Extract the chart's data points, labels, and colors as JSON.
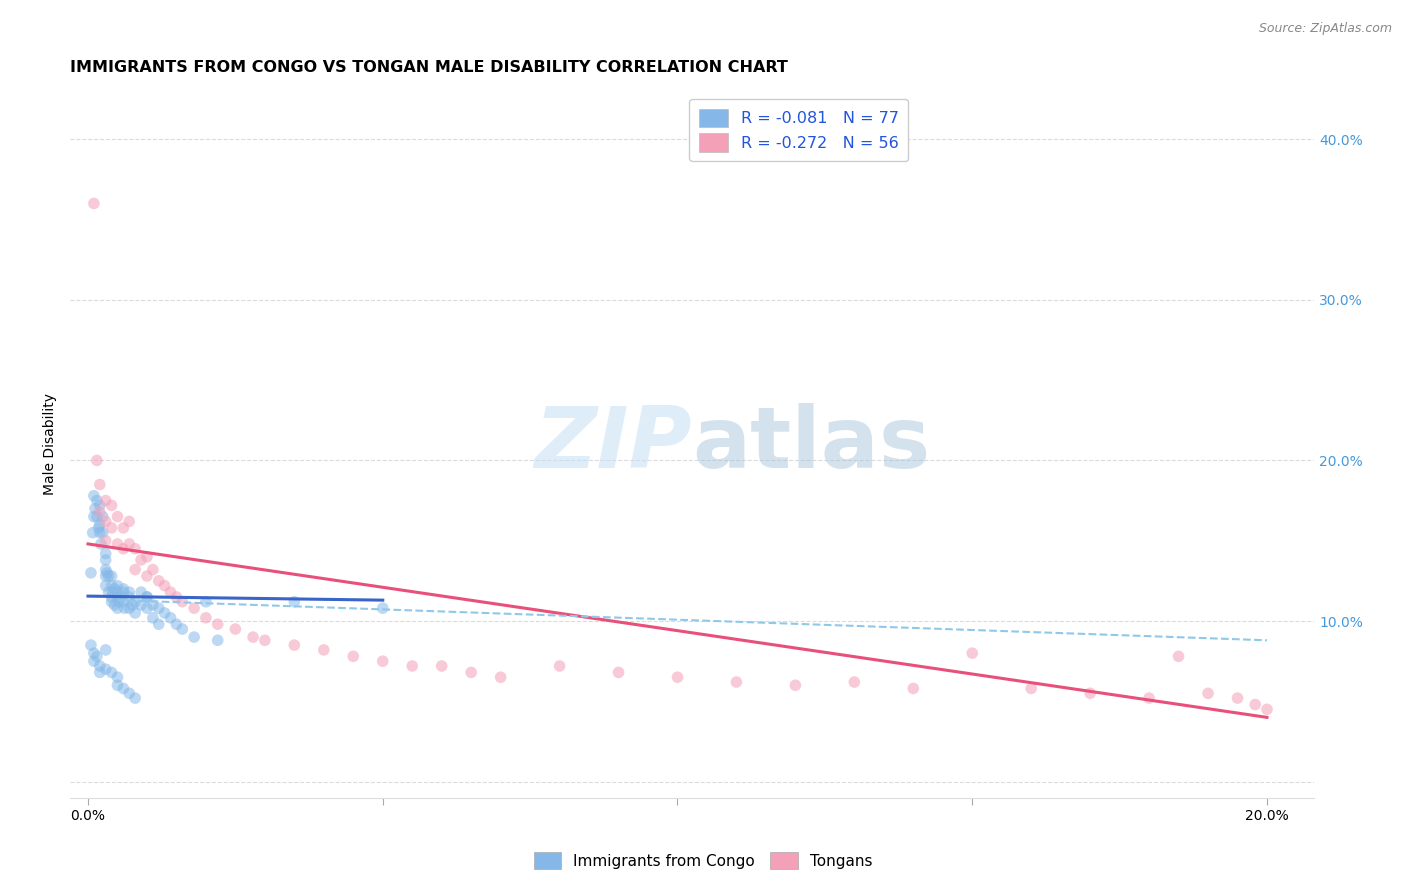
{
  "title": "IMMIGRANTS FROM CONGO VS TONGAN MALE DISABILITY CORRELATION CHART",
  "source": "Source: ZipAtlas.com",
  "ylabel": "Male Disability",
  "watermark_zip": "ZIP",
  "watermark_atlas": "atlas",
  "legend_entries": [
    {
      "label": "R = -0.081   N = 77",
      "facecolor": "#a8c8f0"
    },
    {
      "label": "R = -0.272   N = 56",
      "facecolor": "#f4b8c8"
    }
  ],
  "legend_label_color": "#2255dd",
  "xlabel_ticks": [
    0.0,
    0.05,
    0.1,
    0.15,
    0.2
  ],
  "xlabel_tick_labels": [
    "0.0%",
    "",
    "",
    "",
    "20.0%"
  ],
  "ylabel_ticks": [
    0.0,
    0.1,
    0.2,
    0.3,
    0.4
  ],
  "ylabel_tick_labels_right": [
    "",
    "10.0%",
    "20.0%",
    "30.0%",
    "40.0%"
  ],
  "xlim": [
    -0.003,
    0.208
  ],
  "ylim": [
    -0.01,
    0.43
  ],
  "blue_scatter_x": [
    0.0005,
    0.0008,
    0.001,
    0.001,
    0.0012,
    0.0015,
    0.0015,
    0.0018,
    0.002,
    0.002,
    0.002,
    0.0022,
    0.0025,
    0.0025,
    0.003,
    0.003,
    0.003,
    0.003,
    0.003,
    0.0032,
    0.0035,
    0.0035,
    0.004,
    0.004,
    0.004,
    0.004,
    0.0042,
    0.0045,
    0.0045,
    0.005,
    0.005,
    0.005,
    0.005,
    0.0052,
    0.0055,
    0.006,
    0.006,
    0.006,
    0.0062,
    0.007,
    0.007,
    0.007,
    0.0075,
    0.008,
    0.008,
    0.009,
    0.009,
    0.01,
    0.01,
    0.011,
    0.011,
    0.012,
    0.012,
    0.013,
    0.014,
    0.015,
    0.016,
    0.018,
    0.02,
    0.022,
    0.0005,
    0.001,
    0.001,
    0.0015,
    0.002,
    0.002,
    0.003,
    0.003,
    0.004,
    0.005,
    0.005,
    0.006,
    0.007,
    0.008,
    0.01,
    0.035,
    0.05
  ],
  "blue_scatter_y": [
    0.13,
    0.155,
    0.165,
    0.178,
    0.17,
    0.165,
    0.175,
    0.158,
    0.16,
    0.172,
    0.155,
    0.148,
    0.155,
    0.165,
    0.138,
    0.128,
    0.122,
    0.132,
    0.142,
    0.13,
    0.128,
    0.118,
    0.122,
    0.115,
    0.112,
    0.128,
    0.118,
    0.12,
    0.11,
    0.115,
    0.122,
    0.108,
    0.118,
    0.112,
    0.115,
    0.118,
    0.112,
    0.12,
    0.108,
    0.115,
    0.108,
    0.118,
    0.11,
    0.112,
    0.105,
    0.11,
    0.118,
    0.115,
    0.108,
    0.11,
    0.102,
    0.108,
    0.098,
    0.105,
    0.102,
    0.098,
    0.095,
    0.09,
    0.112,
    0.088,
    0.085,
    0.08,
    0.075,
    0.078,
    0.072,
    0.068,
    0.082,
    0.07,
    0.068,
    0.065,
    0.06,
    0.058,
    0.055,
    0.052,
    0.115,
    0.112,
    0.108
  ],
  "pink_scatter_x": [
    0.001,
    0.0015,
    0.002,
    0.002,
    0.003,
    0.003,
    0.003,
    0.004,
    0.004,
    0.005,
    0.005,
    0.006,
    0.006,
    0.007,
    0.007,
    0.008,
    0.008,
    0.009,
    0.01,
    0.01,
    0.011,
    0.012,
    0.013,
    0.014,
    0.015,
    0.016,
    0.018,
    0.02,
    0.022,
    0.025,
    0.028,
    0.03,
    0.035,
    0.04,
    0.045,
    0.05,
    0.055,
    0.06,
    0.065,
    0.07,
    0.08,
    0.09,
    0.1,
    0.11,
    0.12,
    0.13,
    0.14,
    0.15,
    0.16,
    0.17,
    0.18,
    0.185,
    0.19,
    0.195,
    0.198,
    0.2
  ],
  "pink_scatter_y": [
    0.36,
    0.2,
    0.185,
    0.168,
    0.175,
    0.162,
    0.15,
    0.172,
    0.158,
    0.165,
    0.148,
    0.158,
    0.145,
    0.162,
    0.148,
    0.145,
    0.132,
    0.138,
    0.14,
    0.128,
    0.132,
    0.125,
    0.122,
    0.118,
    0.115,
    0.112,
    0.108,
    0.102,
    0.098,
    0.095,
    0.09,
    0.088,
    0.085,
    0.082,
    0.078,
    0.075,
    0.072,
    0.072,
    0.068,
    0.065,
    0.072,
    0.068,
    0.065,
    0.062,
    0.06,
    0.062,
    0.058,
    0.08,
    0.058,
    0.055,
    0.052,
    0.078,
    0.055,
    0.052,
    0.048,
    0.045
  ],
  "blue_line_x": [
    0.0,
    0.05
  ],
  "blue_line_y": [
    0.1155,
    0.113
  ],
  "pink_line_x": [
    0.0,
    0.2
  ],
  "pink_line_y": [
    0.148,
    0.04
  ],
  "dashed_line_x": [
    0.005,
    0.2
  ],
  "dashed_line_y": [
    0.113,
    0.088
  ],
  "scatter_size": 70,
  "scatter_alpha": 0.55,
  "blue_color": "#85b8e8",
  "pink_color": "#f4a0b8",
  "blue_line_color": "#3a65c8",
  "pink_line_color": "#e8507a",
  "dashed_line_color": "#90c8e8",
  "title_fontsize": 11.5,
  "axis_label_fontsize": 10,
  "tick_fontsize": 10,
  "right_tick_color": "#4499dd",
  "background_color": "#ffffff",
  "grid_color": "#cccccc",
  "bottom_legend_labels": [
    "Immigrants from Congo",
    "Tongans"
  ]
}
